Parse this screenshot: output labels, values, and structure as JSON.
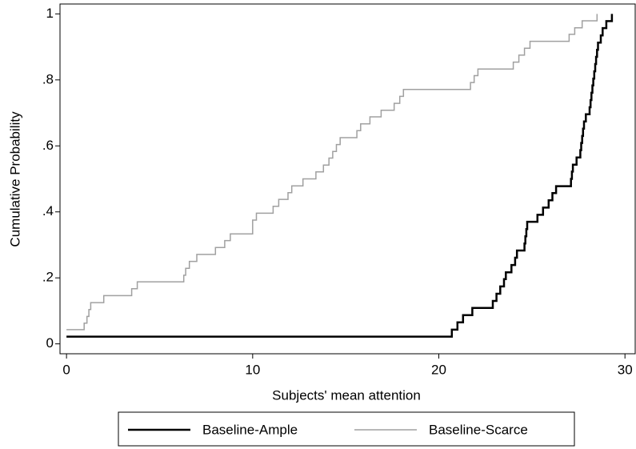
{
  "chart_data": {
    "type": "line",
    "step": "post",
    "x_label": "Subjects' mean attention",
    "y_label": "Cumulative Probability",
    "xlim": [
      -0.35,
      30.55
    ],
    "ylim": [
      -0.03,
      1.03
    ],
    "xticks": [
      0,
      10,
      20,
      30
    ],
    "yticks": [
      0,
      {
        "value": 0.2,
        "label": ".2"
      },
      {
        "value": 0.4,
        "label": ".4"
      },
      {
        "value": 0.6,
        "label": ".6"
      },
      {
        "value": 0.8,
        "label": ".8"
      },
      1
    ],
    "legend": "bottom",
    "series": [
      {
        "name": "Baseline-Ample",
        "color": "#000000",
        "x": [
          0,
          20.7,
          21,
          21.3,
          21.8,
          22.9,
          23.1,
          23.3,
          23.5,
          23.6,
          23.9,
          24.1,
          24.2,
          24.6,
          24.65,
          24.7,
          24.75,
          25.3,
          25.6,
          25.9,
          26.1,
          26.3,
          27.1,
          27.15,
          27.2,
          27.4,
          27.6,
          27.65,
          27.7,
          27.75,
          27.8,
          27.9,
          28.1,
          28.15,
          28.2,
          28.25,
          28.3,
          28.35,
          28.4,
          28.45,
          28.5,
          28.55,
          28.7,
          28.8,
          29,
          29.3
        ],
        "values": [
          0.022,
          0.043,
          0.065,
          0.087,
          0.109,
          0.13,
          0.152,
          0.174,
          0.196,
          0.217,
          0.239,
          0.261,
          0.283,
          0.304,
          0.326,
          0.348,
          0.37,
          0.391,
          0.413,
          0.435,
          0.457,
          0.478,
          0.5,
          0.522,
          0.543,
          0.565,
          0.587,
          0.609,
          0.63,
          0.652,
          0.674,
          0.696,
          0.717,
          0.739,
          0.761,
          0.783,
          0.804,
          0.826,
          0.848,
          0.87,
          0.891,
          0.913,
          0.935,
          0.957,
          0.978,
          1
        ]
      },
      {
        "name": "Baseline-Scarce",
        "color": "#a0a0a0",
        "x": [
          0,
          0.95,
          1.1,
          1.2,
          1.3,
          2,
          3.5,
          3.8,
          6.3,
          6.4,
          6.6,
          7,
          8,
          8.5,
          8.8,
          10,
          10.2,
          11.1,
          11.4,
          11.9,
          12.1,
          12.7,
          13.4,
          13.8,
          14.1,
          14.3,
          14.5,
          14.7,
          15.6,
          15.8,
          16.3,
          16.9,
          17.6,
          17.9,
          18.1,
          21.7,
          21.9,
          22.1,
          24,
          24.3,
          24.6,
          24.9,
          27,
          27.3,
          27.7,
          28.5
        ],
        "values": [
          0.043,
          0.063,
          0.083,
          0.104,
          0.125,
          0.146,
          0.167,
          0.188,
          0.208,
          0.229,
          0.25,
          0.271,
          0.292,
          0.313,
          0.333,
          0.375,
          0.396,
          0.417,
          0.438,
          0.458,
          0.479,
          0.5,
          0.521,
          0.542,
          0.563,
          0.583,
          0.604,
          0.625,
          0.646,
          0.667,
          0.688,
          0.708,
          0.729,
          0.75,
          0.771,
          0.792,
          0.813,
          0.833,
          0.854,
          0.875,
          0.896,
          0.917,
          0.938,
          0.958,
          0.979,
          1
        ]
      }
    ]
  }
}
